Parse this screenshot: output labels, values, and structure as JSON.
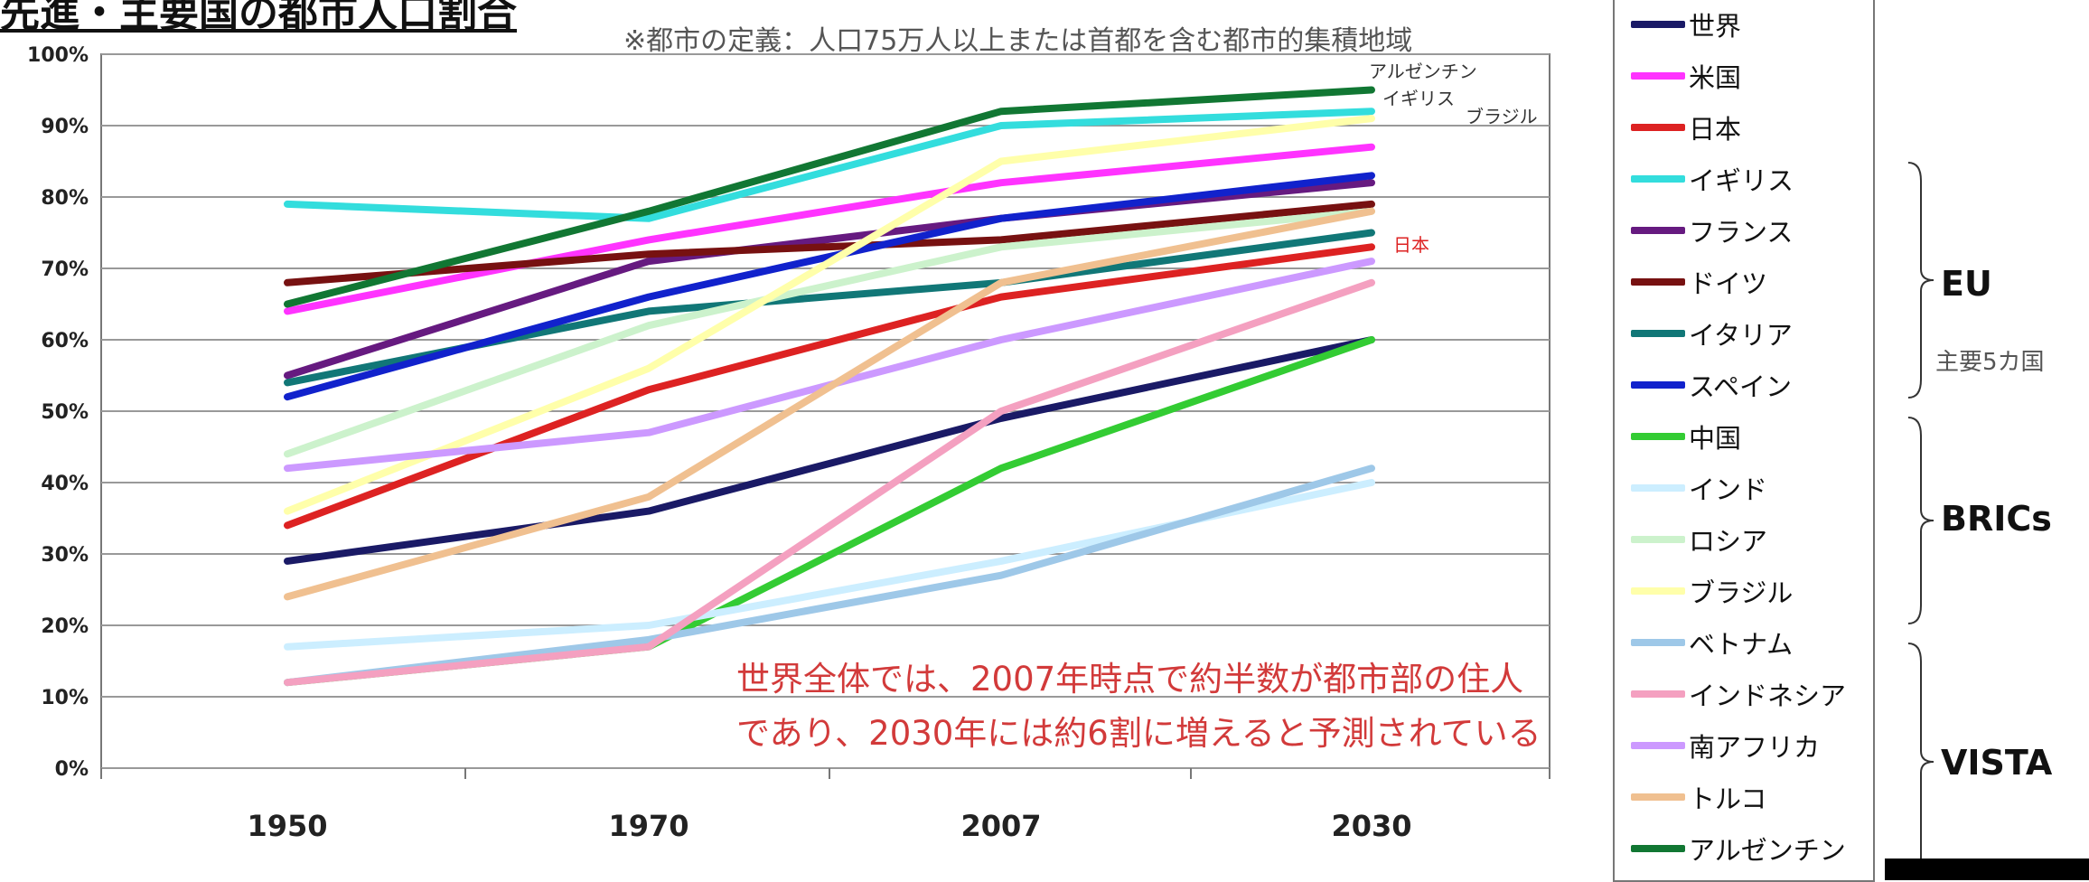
{
  "title": "先進・主要国の都市人口割合",
  "note": "※都市の定義：人口75万人以上または首都を含む都市的集積地域",
  "annotation": {
    "line1": "世界全体では、2007年時点で約半数が都市部の住人",
    "line2": "であり、2030年には約6割に増えると予測されている"
  },
  "groups": [
    {
      "label": "EU",
      "sub": "主要5カ国"
    },
    {
      "label": "BRICs",
      "sub": ""
    },
    {
      "label": "VISTA",
      "sub": ""
    }
  ],
  "line_labels": {
    "argentina": "アルゼンチン",
    "uk": "イギリス",
    "brazil": "ブラジル",
    "japan": "日本"
  },
  "chart_data": {
    "type": "line",
    "categories": [
      "1950",
      "1970",
      "2007",
      "2030"
    ],
    "y_ticks": [
      "0%",
      "10%",
      "20%",
      "30%",
      "40%",
      "50%",
      "60%",
      "70%",
      "80%",
      "90%",
      "100%"
    ],
    "ylim": [
      0,
      100
    ],
    "grid": true,
    "legend_position": "right",
    "series": [
      {
        "name": "世界",
        "color": "#1a1a66",
        "values": [
          29,
          36,
          49,
          60
        ]
      },
      {
        "name": "米国",
        "color": "#ff33ff",
        "values": [
          64,
          74,
          82,
          87
        ]
      },
      {
        "name": "日本",
        "color": "#dd2222",
        "values": [
          34,
          53,
          66,
          73
        ]
      },
      {
        "name": "イギリス",
        "color": "#33dddd",
        "values": [
          79,
          77,
          90,
          92
        ]
      },
      {
        "name": "フランス",
        "color": "#661a80",
        "values": [
          55,
          71,
          77,
          82
        ]
      },
      {
        "name": "ドイツ",
        "color": "#771111",
        "values": [
          68,
          72,
          74,
          79
        ]
      },
      {
        "name": "イタリア",
        "color": "#117777",
        "values": [
          54,
          64,
          68,
          75
        ]
      },
      {
        "name": "スペイン",
        "color": "#1122cc",
        "values": [
          52,
          66,
          77,
          83
        ]
      },
      {
        "name": "中国",
        "color": "#33cc33",
        "values": [
          12,
          17,
          42,
          60
        ]
      },
      {
        "name": "インド",
        "color": "#cceeff",
        "values": [
          17,
          20,
          29,
          40
        ]
      },
      {
        "name": "ロシア",
        "color": "#ccf2cc",
        "values": [
          44,
          62,
          73,
          78
        ]
      },
      {
        "name": "ブラジル",
        "color": "#ffffaa",
        "values": [
          36,
          56,
          85,
          91
        ]
      },
      {
        "name": "ベトナム",
        "color": "#9ec8e8",
        "values": [
          12,
          18,
          27,
          42
        ]
      },
      {
        "name": "インドネシア",
        "color": "#f4a0c0",
        "values": [
          12,
          17,
          50,
          68
        ]
      },
      {
        "name": "南アフリカ",
        "color": "#cc99ff",
        "values": [
          42,
          47,
          60,
          71
        ]
      },
      {
        "name": "トルコ",
        "color": "#f0c090",
        "values": [
          24,
          38,
          68,
          78
        ]
      },
      {
        "name": "アルゼンチン",
        "color": "#117733",
        "values": [
          65,
          78,
          92,
          95
        ]
      }
    ]
  }
}
